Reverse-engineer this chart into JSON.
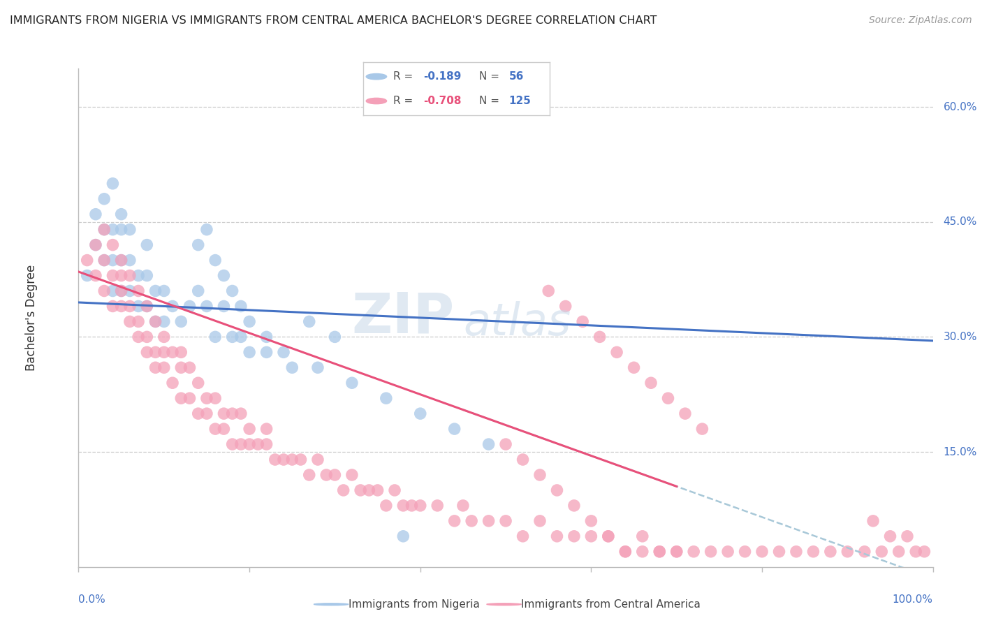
{
  "title": "IMMIGRANTS FROM NIGERIA VS IMMIGRANTS FROM CENTRAL AMERICA BACHELOR'S DEGREE CORRELATION CHART",
  "source": "Source: ZipAtlas.com",
  "ylabel": "Bachelor's Degree",
  "nigeria_R": -0.189,
  "nigeria_N": 56,
  "central_R": -0.708,
  "central_N": 125,
  "nigeria_color": "#a8c8e8",
  "central_color": "#f4a0b8",
  "nigeria_line_color": "#4472c4",
  "central_line_color": "#e8507a",
  "dashed_line_color": "#a8c8d8",
  "xlim": [
    0.0,
    1.0
  ],
  "ylim": [
    0.0,
    0.65
  ],
  "yticks": [
    0.15,
    0.3,
    0.45,
    0.6
  ],
  "ytick_labels": [
    "15.0%",
    "30.0%",
    "45.0%",
    "60.0%"
  ],
  "nigeria_x": [
    0.01,
    0.02,
    0.02,
    0.03,
    0.03,
    0.03,
    0.04,
    0.04,
    0.04,
    0.04,
    0.05,
    0.05,
    0.05,
    0.05,
    0.06,
    0.06,
    0.06,
    0.07,
    0.07,
    0.08,
    0.08,
    0.08,
    0.09,
    0.09,
    0.1,
    0.1,
    0.11,
    0.12,
    0.13,
    0.14,
    0.15,
    0.16,
    0.17,
    0.18,
    0.19,
    0.2,
    0.22,
    0.24,
    0.27,
    0.3,
    0.14,
    0.15,
    0.16,
    0.17,
    0.18,
    0.19,
    0.2,
    0.22,
    0.25,
    0.28,
    0.32,
    0.36,
    0.4,
    0.44,
    0.48,
    0.38
  ],
  "nigeria_y": [
    0.38,
    0.42,
    0.46,
    0.4,
    0.44,
    0.48,
    0.36,
    0.4,
    0.44,
    0.5,
    0.36,
    0.4,
    0.44,
    0.46,
    0.36,
    0.4,
    0.44,
    0.34,
    0.38,
    0.34,
    0.38,
    0.42,
    0.32,
    0.36,
    0.32,
    0.36,
    0.34,
    0.32,
    0.34,
    0.36,
    0.34,
    0.3,
    0.34,
    0.3,
    0.3,
    0.28,
    0.3,
    0.28,
    0.32,
    0.3,
    0.42,
    0.44,
    0.4,
    0.38,
    0.36,
    0.34,
    0.32,
    0.28,
    0.26,
    0.26,
    0.24,
    0.22,
    0.2,
    0.18,
    0.16,
    0.04
  ],
  "central_x": [
    0.01,
    0.02,
    0.02,
    0.03,
    0.03,
    0.03,
    0.04,
    0.04,
    0.04,
    0.05,
    0.05,
    0.05,
    0.05,
    0.06,
    0.06,
    0.06,
    0.07,
    0.07,
    0.07,
    0.08,
    0.08,
    0.08,
    0.09,
    0.09,
    0.09,
    0.1,
    0.1,
    0.1,
    0.11,
    0.11,
    0.12,
    0.12,
    0.12,
    0.13,
    0.13,
    0.14,
    0.14,
    0.15,
    0.15,
    0.16,
    0.16,
    0.17,
    0.17,
    0.18,
    0.18,
    0.19,
    0.19,
    0.2,
    0.2,
    0.21,
    0.22,
    0.22,
    0.23,
    0.24,
    0.25,
    0.26,
    0.27,
    0.28,
    0.29,
    0.3,
    0.31,
    0.32,
    0.33,
    0.34,
    0.35,
    0.36,
    0.37,
    0.38,
    0.39,
    0.4,
    0.42,
    0.44,
    0.45,
    0.46,
    0.48,
    0.5,
    0.52,
    0.54,
    0.56,
    0.58,
    0.6,
    0.62,
    0.64,
    0.66,
    0.68,
    0.7,
    0.55,
    0.57,
    0.59,
    0.61,
    0.63,
    0.65,
    0.67,
    0.69,
    0.71,
    0.73,
    0.5,
    0.52,
    0.54,
    0.56,
    0.58,
    0.6,
    0.62,
    0.64,
    0.66,
    0.68,
    0.7,
    0.72,
    0.74,
    0.76,
    0.78,
    0.8,
    0.82,
    0.84,
    0.86,
    0.88,
    0.9,
    0.92,
    0.94,
    0.96,
    0.98,
    0.99,
    0.95,
    0.97,
    0.93
  ],
  "central_y": [
    0.4,
    0.38,
    0.42,
    0.36,
    0.4,
    0.44,
    0.34,
    0.38,
    0.42,
    0.34,
    0.36,
    0.38,
    0.4,
    0.32,
    0.34,
    0.38,
    0.3,
    0.32,
    0.36,
    0.28,
    0.3,
    0.34,
    0.26,
    0.28,
    0.32,
    0.26,
    0.28,
    0.3,
    0.24,
    0.28,
    0.22,
    0.26,
    0.28,
    0.22,
    0.26,
    0.2,
    0.24,
    0.2,
    0.22,
    0.18,
    0.22,
    0.18,
    0.2,
    0.16,
    0.2,
    0.16,
    0.2,
    0.16,
    0.18,
    0.16,
    0.16,
    0.18,
    0.14,
    0.14,
    0.14,
    0.14,
    0.12,
    0.14,
    0.12,
    0.12,
    0.1,
    0.12,
    0.1,
    0.1,
    0.1,
    0.08,
    0.1,
    0.08,
    0.08,
    0.08,
    0.08,
    0.06,
    0.08,
    0.06,
    0.06,
    0.06,
    0.04,
    0.06,
    0.04,
    0.04,
    0.04,
    0.04,
    0.02,
    0.04,
    0.02,
    0.02,
    0.36,
    0.34,
    0.32,
    0.3,
    0.28,
    0.26,
    0.24,
    0.22,
    0.2,
    0.18,
    0.16,
    0.14,
    0.12,
    0.1,
    0.08,
    0.06,
    0.04,
    0.02,
    0.02,
    0.02,
    0.02,
    0.02,
    0.02,
    0.02,
    0.02,
    0.02,
    0.02,
    0.02,
    0.02,
    0.02,
    0.02,
    0.02,
    0.02,
    0.02,
    0.02,
    0.02,
    0.04,
    0.04,
    0.06
  ]
}
